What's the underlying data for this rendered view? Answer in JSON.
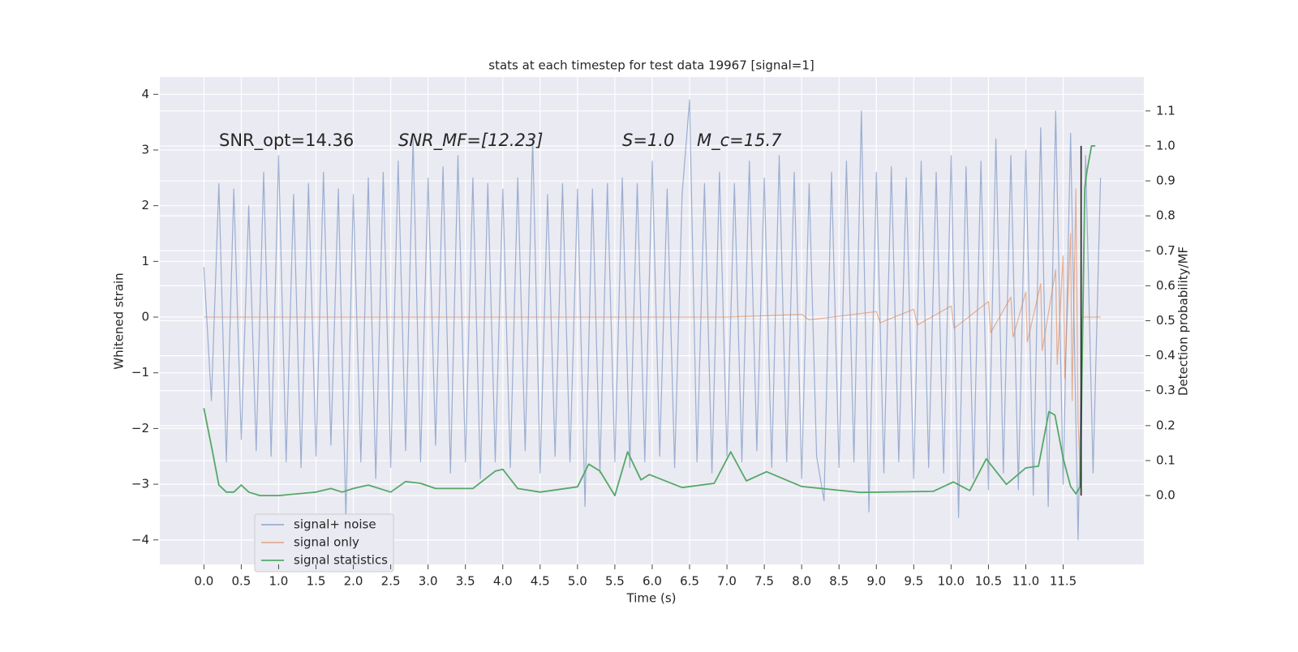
{
  "chart_data": {
    "type": "line",
    "title": "stats at each timestep for test data 19967 [signal=1]",
    "x_label": "Time (s)",
    "y_label": "Whitened strain",
    "y2_label": "Detection probability/MF",
    "annotations": [
      "SNR_opt=14.36",
      "SNR_MF=[12.23]",
      "S=1.0",
      "M_c=15.7"
    ],
    "xlim": [
      -0.59,
      12.58
    ],
    "xticks": [
      {
        "value": 0,
        "label": "0.0"
      },
      {
        "value": 0.5,
        "label": "0.5"
      },
      {
        "value": 1,
        "label": "1.0"
      },
      {
        "value": 1.5,
        "label": "1.5"
      },
      {
        "value": 2,
        "label": "2.0"
      },
      {
        "value": 2.5,
        "label": "2.5"
      },
      {
        "value": 3,
        "label": "3.0"
      },
      {
        "value": 3.5,
        "label": "3.5"
      },
      {
        "value": 4,
        "label": "4.0"
      },
      {
        "value": 4.5,
        "label": "4.5"
      },
      {
        "value": 5,
        "label": "5.0"
      },
      {
        "value": 5.5,
        "label": "5.5"
      },
      {
        "value": 6,
        "label": "6.0"
      },
      {
        "value": 6.5,
        "label": "6.5"
      },
      {
        "value": 7,
        "label": "7.0"
      },
      {
        "value": 7.5,
        "label": "7.5"
      },
      {
        "value": 8,
        "label": "8.0"
      },
      {
        "value": 8.5,
        "label": "8.5"
      },
      {
        "value": 9,
        "label": "9.0"
      },
      {
        "value": 9.5,
        "label": "9.5"
      },
      {
        "value": 10,
        "label": "10.0"
      },
      {
        "value": 10.5,
        "label": "10.5"
      },
      {
        "value": 11,
        "label": "11.0"
      },
      {
        "value": 11.5,
        "label": "11.5"
      }
    ],
    "ylim": [
      -4.44,
      4.31
    ],
    "yticks": [
      {
        "value": -4,
        "label": "−4"
      },
      {
        "value": -3,
        "label": "−3"
      },
      {
        "value": -2,
        "label": "−2"
      },
      {
        "value": -1,
        "label": "−1"
      },
      0,
      1,
      2,
      3,
      4
    ],
    "y2lim": [
      -0.197,
      1.197
    ],
    "y2ticks": [
      {
        "value": 0,
        "label": "0.0"
      },
      {
        "value": 0.1,
        "label": "0.1"
      },
      {
        "value": 0.2,
        "label": "0.2"
      },
      {
        "value": 0.3,
        "label": "0.3"
      },
      {
        "value": 0.4,
        "label": "0.4"
      },
      {
        "value": 0.5,
        "label": "0.5"
      },
      {
        "value": 0.6,
        "label": "0.6"
      },
      {
        "value": 0.7,
        "label": "0.7"
      },
      {
        "value": 0.8,
        "label": "0.8"
      },
      {
        "value": 0.9,
        "label": "0.9"
      },
      {
        "value": 1,
        "label": "1.0"
      },
      {
        "value": 1.1,
        "label": "1.1"
      }
    ],
    "grid": true,
    "legend": "lower left",
    "series": [
      {
        "name": "signal+ noise",
        "color": "#4c72b0",
        "x": [
          0,
          0.1,
          0.2,
          0.3,
          0.4,
          0.5,
          0.6,
          0.7,
          0.8,
          0.9,
          1,
          1.1,
          1.2,
          1.3,
          1.4,
          1.5,
          1.6,
          1.7,
          1.8,
          1.9,
          2,
          2.1,
          2.2,
          2.3,
          2.4,
          2.5,
          2.6,
          2.7,
          2.8,
          2.9,
          3,
          3.1,
          3.2,
          3.3,
          3.4,
          3.5,
          3.6,
          3.7,
          3.8,
          3.9,
          4,
          4.1,
          4.2,
          4.3,
          4.4,
          4.5,
          4.6,
          4.7,
          4.8,
          4.9,
          5,
          5.1,
          5.2,
          5.3,
          5.4,
          5.5,
          5.6,
          5.7,
          5.8,
          5.9,
          6,
          6.1,
          6.2,
          6.3,
          6.4,
          6.5,
          6.6,
          6.7,
          6.8,
          6.9,
          7,
          7.1,
          7.2,
          7.3,
          7.4,
          7.5,
          7.6,
          7.7,
          7.8,
          7.9,
          8,
          8.1,
          8.2,
          8.3,
          8.4,
          8.5,
          8.6,
          8.7,
          8.8,
          8.9,
          9,
          9.1,
          9.2,
          9.3,
          9.4,
          9.5,
          9.6,
          9.7,
          9.8,
          9.9,
          10,
          10.1,
          10.2,
          10.3,
          10.4,
          10.5,
          10.6,
          10.7,
          10.8,
          10.9,
          11,
          11.1,
          11.2,
          11.3,
          11.4,
          11.5,
          11.6,
          11.7,
          11.8,
          11.9,
          12
        ],
        "values": [
          0.9,
          -1.5,
          2.4,
          -2.6,
          2.3,
          -2.2,
          2.0,
          -2.4,
          2.6,
          -2.5,
          2.9,
          -2.6,
          2.2,
          -2.7,
          2.4,
          -2.5,
          2.6,
          -2.3,
          2.3,
          -3.6,
          2.2,
          -2.6,
          2.5,
          -2.9,
          2.6,
          -2.7,
          2.8,
          -2.4,
          3.2,
          -2.6,
          2.5,
          -2.3,
          2.7,
          -2.8,
          2.9,
          -2.6,
          2.5,
          -2.9,
          2.4,
          -2.6,
          2.3,
          -2.7,
          2.5,
          -2.4,
          3.2,
          -2.8,
          2.2,
          -2.5,
          2.4,
          -2.6,
          2.3,
          -3.4,
          2.3,
          -2.8,
          2.4,
          -2.6,
          2.5,
          -2.7,
          2.4,
          -2.6,
          2.8,
          -2.5,
          2.3,
          -2.7,
          2.2,
          3.9,
          -2.6,
          2.4,
          -2.8,
          2.6,
          -2.5,
          2.4,
          -2.6,
          2.8,
          -2.4,
          2.5,
          -2.7,
          2.9,
          -2.6,
          2.6,
          -2.9,
          2.4,
          -2.5,
          -3.3,
          2.6,
          -2.7,
          2.8,
          -2.6,
          3.7,
          -3.5,
          2.6,
          -2.8,
          2.7,
          -2.6,
          2.5,
          -2.9,
          2.8,
          -2.7,
          2.6,
          -2.8,
          2.9,
          -3.6,
          2.7,
          -2.9,
          2.8,
          -3.1,
          3.2,
          -2.8,
          2.9,
          -3.1,
          3.0,
          -3.2,
          3.4,
          -3.4,
          3.7,
          -3.0,
          3.3,
          -4.0,
          2.9,
          -2.8,
          2.5
        ]
      },
      {
        "name": "signal only",
        "color": "#dd8452",
        "x": [
          0,
          7,
          8,
          8.1,
          9,
          9.05,
          9.5,
          9.55,
          10,
          10.04,
          10.5,
          10.53,
          10.8,
          10.83,
          11,
          11.02,
          11.2,
          11.22,
          11.4,
          11.42,
          11.5,
          11.52,
          11.6,
          11.62,
          11.67,
          11.7,
          11.73,
          11.76,
          12
        ],
        "values": [
          0,
          0,
          0.05,
          -0.05,
          0.1,
          -0.1,
          0.14,
          -0.14,
          0.2,
          -0.2,
          0.28,
          -0.28,
          0.36,
          -0.36,
          0.45,
          -0.45,
          0.6,
          -0.6,
          0.85,
          -0.85,
          1.1,
          -1.1,
          1.5,
          -1.5,
          2.3,
          -1.9,
          -2.8,
          0,
          0
        ]
      },
      {
        "name": "signal statistics",
        "color": "#55a868",
        "axis": "y2",
        "x": [
          0,
          0.12,
          0.2,
          0.3,
          0.4,
          0.5,
          0.6,
          0.75,
          1,
          1.5,
          1.7,
          1.85,
          2,
          2.2,
          2.5,
          2.7,
          2.9,
          3.1,
          3.4,
          3.6,
          3.9,
          4.0,
          4.2,
          4.5,
          5.0,
          5.15,
          5.3,
          5.5,
          5.67,
          5.85,
          5.96,
          6.4,
          6.83,
          7.05,
          7.26,
          7.53,
          8.0,
          8.78,
          9.76,
          10.03,
          10.25,
          10.47,
          10.74,
          11.0,
          11.17,
          11.31,
          11.39,
          11.5,
          11.6,
          11.67,
          11.73,
          11.79,
          11.82,
          11.88,
          11.93
        ],
        "values": [
          0.25,
          0.12,
          0.03,
          0.01,
          0.01,
          0.03,
          0.01,
          0,
          0,
          0.01,
          0.02,
          0.01,
          0.02,
          0.03,
          0.01,
          0.04,
          0.035,
          0.02,
          0.02,
          0.02,
          0.07,
          0.075,
          0.02,
          0.01,
          0.025,
          0.09,
          0.07,
          0.0,
          0.125,
          0.045,
          0.06,
          0.023,
          0.035,
          0.125,
          0.042,
          0.068,
          0.026,
          0.009,
          0.012,
          0.039,
          0.014,
          0.105,
          0.032,
          0.079,
          0.084,
          0.24,
          0.23,
          0.107,
          0.026,
          0.005,
          0.026,
          0.88,
          0.93,
          1.0,
          1.0
        ]
      }
    ],
    "vline": {
      "x": 11.74,
      "ymin": 0,
      "ymax": 1,
      "color": "#222222"
    }
  }
}
